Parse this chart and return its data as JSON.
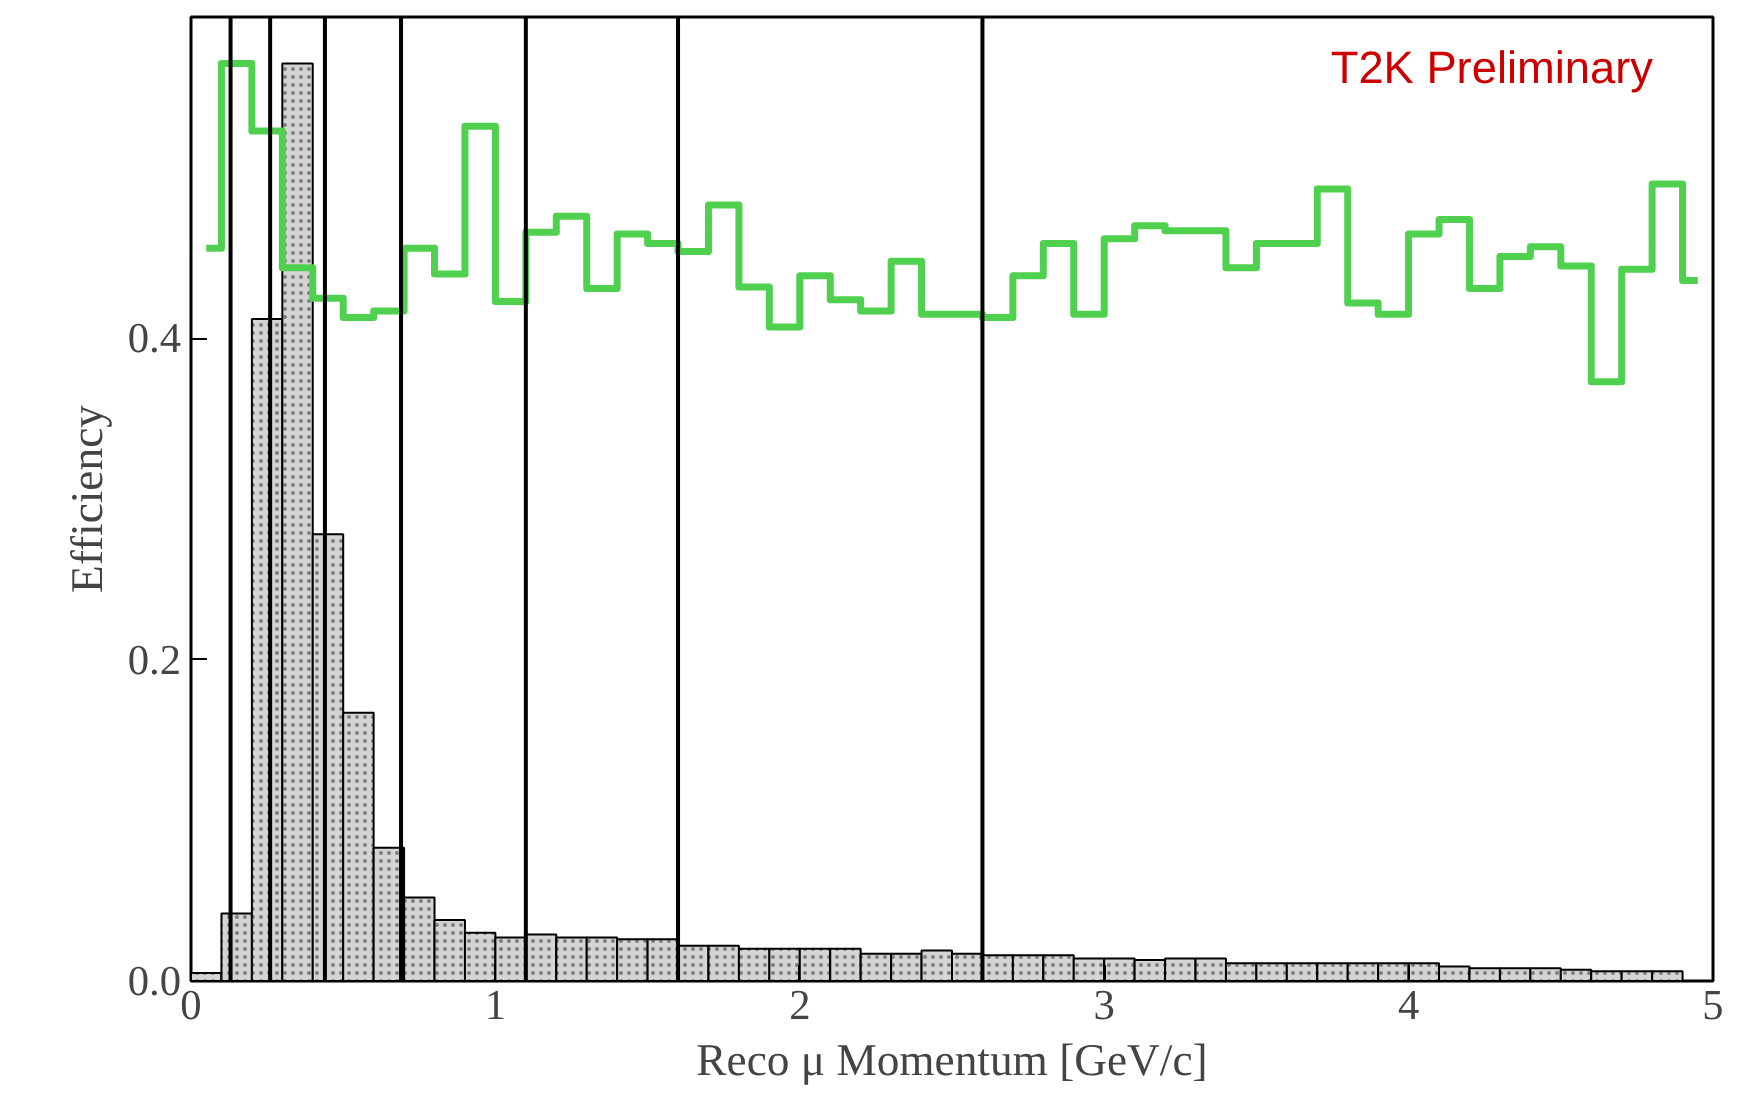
{
  "chart_data": {
    "type": "step",
    "xlabel": "Reco μ Momentum [GeV/c]",
    "ylabel": "Efficiency",
    "xlim": [
      0,
      5
    ],
    "ylim": [
      0,
      0.6
    ],
    "xticks": [
      0,
      1,
      2,
      3,
      4,
      5
    ],
    "yticks": [
      {
        "value": 0,
        "label": "0.0"
      },
      {
        "value": 0.2,
        "label": "0.2"
      },
      {
        "value": 0.4,
        "label": "0.4"
      }
    ],
    "grid": false,
    "annotations": [
      "T2K Preliminary"
    ],
    "ref_lines": [
      {
        "axis": "x",
        "value": 0.13,
        "color": "#000000"
      },
      {
        "axis": "x",
        "value": 0.26,
        "color": "#000000"
      },
      {
        "axis": "x",
        "value": 0.44,
        "color": "#000000"
      },
      {
        "axis": "x",
        "value": 0.69,
        "color": "#000000"
      },
      {
        "axis": "x",
        "value": 1.1,
        "color": "#000000"
      },
      {
        "axis": "x",
        "value": 1.6,
        "color": "#000000"
      },
      {
        "axis": "x",
        "value": 2.6,
        "color": "#000000"
      }
    ],
    "series": [
      {
        "type": "histogram",
        "color": "#d4d4d4",
        "bins": [
          0,
          0.1,
          0.2,
          0.3,
          0.4,
          0.5,
          0.6,
          0.7,
          0.8,
          0.9,
          1.0,
          1.1,
          1.2,
          1.3,
          1.4,
          1.5,
          1.6,
          1.7,
          1.8,
          1.9,
          2.0,
          2.1,
          2.2,
          2.3,
          2.4,
          2.5,
          2.6,
          2.7,
          2.8,
          2.9,
          3.0,
          3.1,
          3.2,
          3.3,
          3.4,
          3.5,
          3.6,
          3.7,
          3.8,
          3.9,
          4.0,
          4.1,
          4.2,
          4.3,
          4.4,
          4.5,
          4.6,
          4.7,
          4.8,
          4.9,
          5.0
        ],
        "values": [
          0.005,
          0.042,
          0.412,
          0.571,
          0.278,
          0.167,
          0.083,
          0.052,
          0.038,
          0.03,
          0.027,
          0.029,
          0.027,
          0.027,
          0.026,
          0.026,
          0.022,
          0.022,
          0.02,
          0.02,
          0.02,
          0.02,
          0.017,
          0.017,
          0.019,
          0.017,
          0.016,
          0.016,
          0.016,
          0.014,
          0.014,
          0.013,
          0.014,
          0.014,
          0.011,
          0.011,
          0.011,
          0.011,
          0.011,
          0.011,
          0.011,
          0.009,
          0.008,
          0.008,
          0.008,
          0.007,
          0.006,
          0.006,
          0.006,
          null
        ]
      },
      {
        "color": "#4fd14f",
        "x": [
          0.05,
          0.15,
          0.25,
          0.35,
          0.45,
          0.55,
          0.65,
          0.75,
          0.85,
          0.95,
          1.05,
          1.15,
          1.25,
          1.35,
          1.45,
          1.55,
          1.65,
          1.75,
          1.85,
          1.95,
          2.05,
          2.15,
          2.25,
          2.35,
          2.45,
          2.55,
          2.65,
          2.75,
          2.85,
          2.95,
          3.05,
          3.15,
          3.25,
          3.35,
          3.45,
          3.55,
          3.65,
          3.75,
          3.85,
          3.95,
          4.05,
          4.15,
          4.25,
          4.35,
          4.45,
          4.55,
          4.65,
          4.75,
          4.85,
          4.95
        ],
        "values": [
          0.456,
          0.571,
          0.529,
          0.444,
          0.425,
          0.413,
          0.417,
          0.456,
          0.44,
          0.532,
          0.423,
          0.466,
          0.476,
          0.431,
          0.465,
          0.459,
          0.454,
          0.483,
          0.432,
          0.407,
          0.439,
          0.424,
          0.417,
          0.448,
          0.415,
          0.415,
          0.413,
          0.439,
          0.459,
          0.415,
          0.462,
          0.47,
          0.467,
          0.467,
          0.444,
          0.459,
          0.459,
          0.493,
          0.422,
          0.415,
          0.465,
          0.474,
          0.431,
          0.451,
          0.457,
          0.445,
          0.373,
          0.443,
          0.496,
          0.436
        ]
      }
    ]
  }
}
